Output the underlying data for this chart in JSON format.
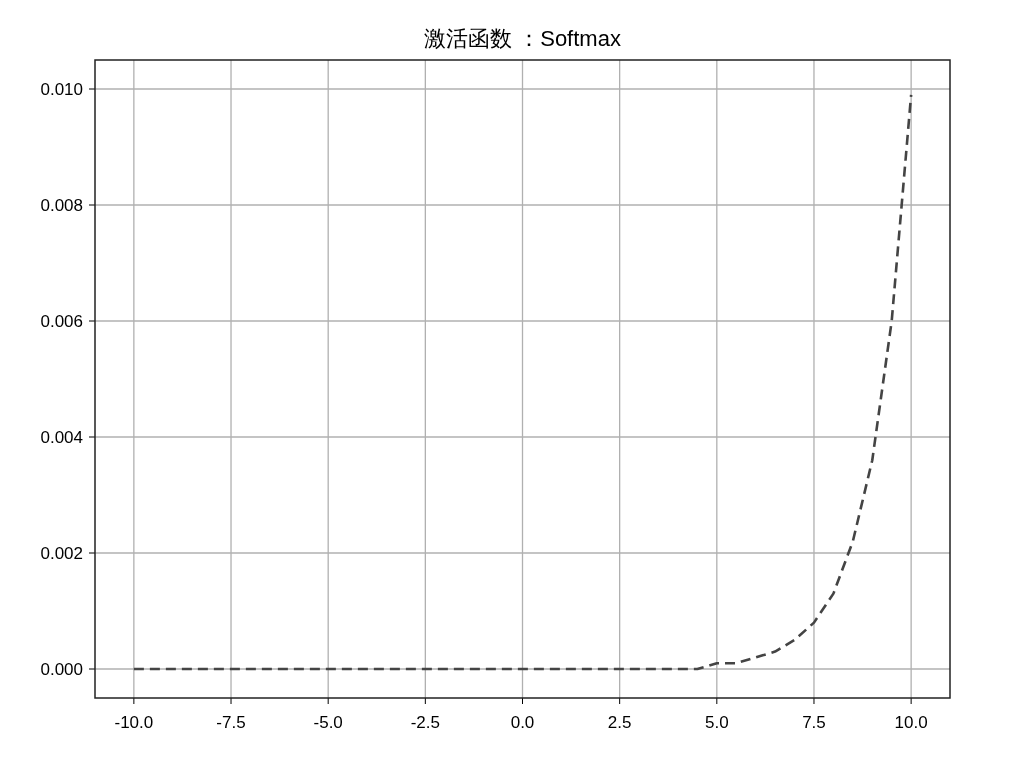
{
  "chart_data": {
    "type": "line",
    "title": "激活函数 ：Softmax",
    "x": [
      -10,
      -8,
      -6,
      -4,
      -2,
      0,
      1,
      2,
      3,
      4,
      4.5,
      5,
      5.5,
      6,
      6.5,
      7,
      7.5,
      8,
      8.5,
      9,
      9.5,
      10
    ],
    "series": [
      {
        "color": "#444444",
        "values": [
          0,
          0,
          0,
          0,
          0,
          0,
          0,
          0,
          0,
          0,
          0,
          0.0001,
          0.0001,
          0.0002,
          0.0003,
          0.0005,
          0.0008,
          0.0013,
          0.0022,
          0.0036,
          0.006,
          0.0099
        ]
      }
    ],
    "xlim": [
      -11,
      11
    ],
    "ylim": [
      -0.0005,
      0.0105
    ],
    "xticks": [
      {
        "value": -10,
        "label": "-10.0"
      },
      -7.5,
      {
        "value": -5,
        "label": "-5.0"
      },
      -2.5,
      {
        "value": 0,
        "label": "0.0"
      },
      2.5,
      {
        "value": 5,
        "label": "5.0"
      },
      7.5,
      {
        "value": 10,
        "label": "10.0"
      }
    ],
    "yticks": [
      {
        "value": 0,
        "label": "0.000"
      },
      {
        "value": 0.002,
        "label": "0.002"
      },
      {
        "value": 0.004,
        "label": "0.004"
      },
      {
        "value": 0.006,
        "label": "0.006"
      },
      {
        "value": 0.008,
        "label": "0.008"
      },
      {
        "value": 0.01,
        "label": "0.010"
      }
    ],
    "grid": true,
    "line_style": "dashed"
  }
}
